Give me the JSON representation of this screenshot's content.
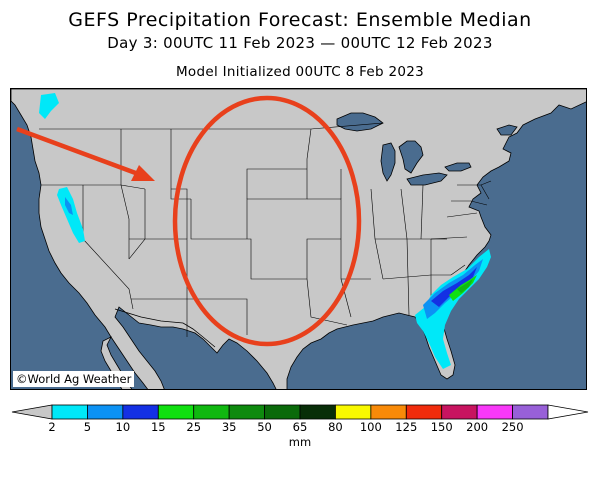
{
  "header": {
    "title": "GEFS Precipitation Forecast: Ensemble Median",
    "valid_period": "Day 3: 00UTC 11 Feb 2023 — 00UTC 12 Feb 2023",
    "init": "Model Initialized 00UTC 8 Feb 2023"
  },
  "map": {
    "credit": "©World Ag Weather",
    "colors": {
      "ocean": "#4a6c8f",
      "land": "#c8c8c8",
      "annotation": "#e8401c"
    }
  },
  "legend": {
    "unit": "mm",
    "ticks": [
      "2",
      "5",
      "10",
      "15",
      "25",
      "35",
      "50",
      "65",
      "80",
      "100",
      "125",
      "150",
      "200",
      "250"
    ],
    "colors": [
      "#00e8f8",
      "#0c92f4",
      "#1430e4",
      "#10e010",
      "#10b810",
      "#0e8a0e",
      "#0a6a0a",
      "#082e08",
      "#f8f800",
      "#f88a08",
      "#f02c0c",
      "#c81460",
      "#f838f8",
      "#9860d8"
    ],
    "end_color": "#c8c8c8"
  }
}
